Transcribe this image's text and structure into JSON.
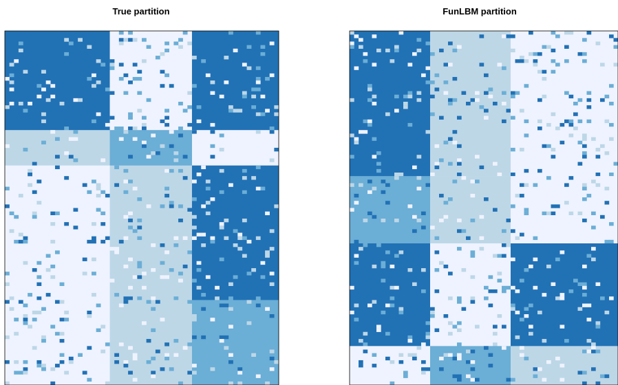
{
  "chart_data": [
    {
      "type": "heatmap",
      "title": "True partition",
      "row_blocks": [
        {
          "index": 1,
          "share": 0.28
        },
        {
          "index": 2,
          "share": 0.1
        },
        {
          "index": 3,
          "share": 0.38
        },
        {
          "index": 4,
          "share": 0.24
        }
      ],
      "col_blocks": [
        {
          "index": 1,
          "share": 0.39
        },
        {
          "index": 2,
          "share": 0.3
        },
        {
          "index": 3,
          "share": 0.31
        }
      ],
      "block_levels": [
        [
          4,
          1,
          4
        ],
        [
          2,
          3,
          1
        ],
        [
          1,
          2,
          4
        ],
        [
          1,
          2,
          3
        ]
      ]
    },
    {
      "type": "heatmap",
      "title": "FunLBM partition",
      "row_blocks": [
        {
          "index": 1,
          "share": 0.41
        },
        {
          "index": 2,
          "share": 0.19
        },
        {
          "index": 3,
          "share": 0.29
        },
        {
          "index": 4,
          "share": 0.11
        }
      ],
      "col_blocks": [
        {
          "index": 1,
          "share": 0.3
        },
        {
          "index": 2,
          "share": 0.3
        },
        {
          "index": 3,
          "share": 0.4
        }
      ],
      "block_levels": [
        [
          4,
          2,
          1
        ],
        [
          3,
          2,
          1
        ],
        [
          4,
          1,
          4
        ],
        [
          1,
          3,
          2
        ]
      ]
    }
  ],
  "palette": {
    "level_1": "#eff3ff",
    "level_2": "#bdd7e7",
    "level_3": "#6baed6",
    "level_4": "#2171b5"
  },
  "grid": {
    "rows": 100,
    "cols": 60
  },
  "noise_rate": 0.08
}
